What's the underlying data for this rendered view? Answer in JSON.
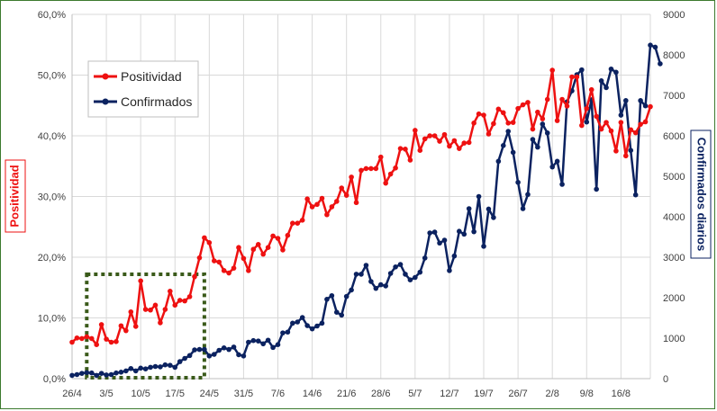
{
  "colors": {
    "positividad": "#ee1111",
    "confirmados": "#0b2260",
    "grid": "#d9d9d9",
    "highlight_box": "#3a5a1a",
    "frame": "#3c7a2e"
  },
  "chart_data": {
    "type": "line",
    "x_tick_labels": [
      "26/4",
      "3/5",
      "10/5",
      "17/5",
      "24/5",
      "31/5",
      "7/6",
      "14/6",
      "21/6",
      "28/6",
      "5/7",
      "12/7",
      "19/7",
      "26/7",
      "2/8",
      "9/8",
      "16/8"
    ],
    "x_start_date": "26/4",
    "y_left": {
      "label": "Positividad",
      "min": 0,
      "max": 60,
      "ticks": [
        "0,0%",
        "10,0%",
        "20,0%",
        "30,0%",
        "40,0%",
        "50,0%",
        "60,0%"
      ]
    },
    "y_right": {
      "label": "Confirmados diarios",
      "min": 0,
      "max": 9000,
      "ticks": [
        "0",
        "1000",
        "2000",
        "3000",
        "4000",
        "5000",
        "6000",
        "7000",
        "8000",
        "9000"
      ]
    },
    "grid": true,
    "legend": {
      "position": "top-left",
      "entries": [
        "Positividad",
        "Confirmados"
      ]
    },
    "highlighted_range": {
      "from": "29/4",
      "to": "23/5"
    },
    "series": [
      {
        "name": "Positividad",
        "axis": "left",
        "unit": "%",
        "values": [
          6.0,
          6.7,
          6.6,
          6.9,
          6.6,
          5.6,
          8.9,
          6.5,
          6.0,
          6.1,
          8.7,
          7.9,
          11.0,
          8.6,
          16.1,
          11.4,
          11.3,
          12.1,
          9.2,
          11.4,
          14.4,
          12.1,
          12.9,
          12.8,
          13.5,
          16.8,
          19.9,
          23.2,
          22.4,
          19.4,
          19.2,
          17.8,
          17.4,
          18.2,
          21.6,
          19.8,
          17.8,
          21.3,
          22.1,
          20.5,
          21.6,
          23.5,
          23.1,
          21.2,
          23.6,
          25.6,
          25.6,
          26.1,
          29.6,
          28.3,
          28.7,
          29.7,
          27.0,
          28.3,
          29.2,
          31.4,
          30.2,
          33.2,
          29.0,
          34.3,
          34.6,
          34.6,
          34.6,
          36.5,
          32.2,
          33.7,
          34.7,
          37.9,
          37.8,
          36.0,
          40.9,
          37.6,
          39.5,
          40.0,
          40.0,
          39.1,
          40.2,
          38.3,
          39.2,
          37.9,
          38.8,
          38.9,
          42.1,
          43.6,
          43.4,
          40.3,
          42.0,
          44.4,
          43.8,
          42.1,
          42.2,
          44.5,
          45.1,
          45.5,
          41.1,
          43.9,
          42.8,
          46.0,
          50.8,
          42.5,
          46.0,
          44.9,
          49.7,
          49.7,
          41.7,
          44.5,
          47.6,
          43.2,
          41.1,
          42.2,
          40.8,
          37.5,
          42.2,
          36.7,
          41.0,
          40.5,
          41.9,
          42.3,
          44.8
        ]
      },
      {
        "name": "Confirmados",
        "axis": "right",
        "unit": "",
        "values": [
          80,
          100,
          130,
          150,
          140,
          80,
          130,
          90,
          100,
          140,
          160,
          190,
          250,
          190,
          260,
          240,
          280,
          300,
          290,
          340,
          330,
          280,
          420,
          500,
          570,
          710,
          720,
          720,
          560,
          600,
          700,
          760,
          720,
          780,
          590,
          560,
          900,
          940,
          930,
          860,
          950,
          770,
          840,
          1130,
          1150,
          1370,
          1400,
          1510,
          1310,
          1230,
          1300,
          1370,
          1960,
          2050,
          1640,
          1570,
          2030,
          2190,
          2580,
          2580,
          2800,
          2400,
          2230,
          2320,
          2290,
          2600,
          2760,
          2820,
          2580,
          2440,
          2500,
          2630,
          2980,
          3600,
          3620,
          3350,
          3420,
          2670,
          3030,
          3640,
          3570,
          4200,
          3630,
          4500,
          3270,
          4190,
          3980,
          5370,
          5760,
          6110,
          5590,
          4850,
          4200,
          4550,
          5910,
          5720,
          6290,
          6070,
          5230,
          5370,
          4800,
          6840,
          7110,
          7510,
          7630,
          6340,
          6890,
          4680,
          7360,
          7190,
          7650,
          7570,
          6510,
          6870,
          5640,
          4540,
          6870,
          6740,
          8240,
          8190,
          7780
        ]
      }
    ]
  }
}
